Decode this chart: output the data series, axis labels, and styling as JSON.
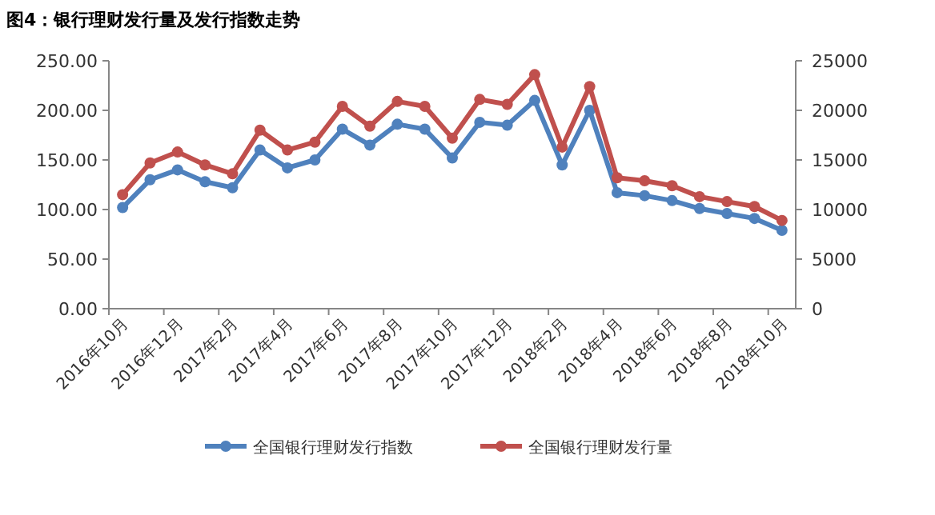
{
  "chart_data": {
    "type": "line",
    "title": "图4：银行理财发行量及发行指数走势",
    "categories": [
      "2016年10月",
      null,
      "2016年12月",
      null,
      "2017年2月",
      null,
      "2017年4月",
      null,
      "2017年6月",
      null,
      "2017年8月",
      null,
      "2017年10月",
      null,
      "2017年12月",
      null,
      "2018年2月",
      null,
      "2018年4月",
      null,
      "2018年6月",
      null,
      "2018年8月",
      null,
      "2018年10月"
    ],
    "series": [
      {
        "name": "全国银行理财发行指数",
        "color": "#4f81bd",
        "values": [
          102,
          130,
          140,
          128,
          122,
          160,
          142,
          150,
          181,
          165,
          186,
          181,
          152,
          188,
          185,
          210,
          145,
          200,
          117,
          114,
          109,
          101,
          96,
          91,
          79
        ]
      },
      {
        "name": "全国银行理财发行量",
        "color": "#c0504d",
        "axis": "y2",
        "values": [
          11500,
          14700,
          15800,
          14500,
          13600,
          18000,
          16000,
          16800,
          20400,
          18400,
          20900,
          20400,
          17200,
          21100,
          20600,
          23600,
          16300,
          22400,
          13200,
          12900,
          12400,
          11300,
          10800,
          10300,
          8900
        ]
      }
    ],
    "ylim": [
      0,
      250
    ],
    "yticks": [
      {
        "value": 0,
        "label": "0.00"
      },
      {
        "value": 50,
        "label": "50.00"
      },
      {
        "value": 100,
        "label": "100.00"
      },
      {
        "value": 150,
        "label": "150.00"
      },
      {
        "value": 200,
        "label": "200.00"
      },
      {
        "value": 250,
        "label": "250.00"
      }
    ],
    "y2lim": [
      0,
      25000
    ],
    "y2ticks": [
      0,
      5000,
      10000,
      15000,
      20000,
      25000
    ],
    "grid": false,
    "legend": "bottom",
    "marker": "circle",
    "line_style": "solid"
  }
}
